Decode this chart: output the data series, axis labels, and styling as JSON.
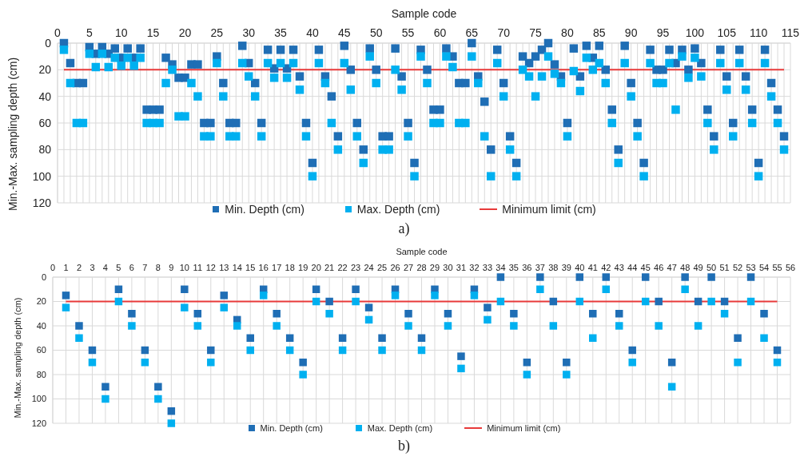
{
  "chart_data": [
    {
      "type": "scatter",
      "xlabel": "Sample code",
      "ylabel": "Min.-Max. sampling depth (cm)",
      "annotations": [
        "a)"
      ],
      "x": [
        1,
        2,
        3,
        4,
        5,
        6,
        7,
        8,
        9,
        10,
        11,
        12,
        13,
        14,
        15,
        16,
        17,
        18,
        19,
        20,
        21,
        22,
        23,
        24,
        25,
        26,
        27,
        28,
        29,
        30,
        31,
        32,
        33,
        34,
        35,
        36,
        37,
        38,
        39,
        40,
        41,
        42,
        43,
        44,
        45,
        46,
        47,
        48,
        49,
        50,
        51,
        52,
        53,
        54,
        55,
        56,
        57,
        58,
        59,
        60,
        61,
        62,
        63,
        64,
        65,
        66,
        67,
        68,
        69,
        70,
        71,
        72,
        73,
        74,
        75,
        76,
        77,
        78,
        79,
        80,
        81,
        82,
        83,
        84,
        85,
        86,
        87,
        88,
        89,
        90,
        91,
        92,
        93,
        94,
        95,
        96,
        97,
        98,
        99,
        100,
        101,
        102,
        103,
        104,
        105,
        106,
        107,
        108,
        109,
        110,
        111,
        112,
        113,
        114
      ],
      "series": [
        {
          "name": "Min. Depth  (cm)",
          "color": "#1f6eb5",
          "marker": "square",
          "values": [
            0,
            15,
            30,
            30,
            3,
            8,
            3,
            8,
            4,
            11,
            4,
            11,
            4,
            50,
            50,
            50,
            11,
            16,
            26,
            26,
            16,
            16,
            60,
            60,
            10,
            30,
            60,
            60,
            2,
            15,
            30,
            60,
            5,
            19,
            5,
            19,
            5,
            25,
            60,
            90,
            5,
            25,
            40,
            70,
            2,
            20,
            60,
            80,
            4,
            20,
            70,
            70,
            4,
            25,
            60,
            90,
            5,
            20,
            50,
            50,
            4,
            10,
            30,
            30,
            0,
            25,
            44,
            80,
            5,
            30,
            70,
            90,
            10,
            15,
            10,
            5,
            0,
            16,
            25,
            60,
            4,
            25,
            2,
            11,
            2,
            20,
            50,
            80,
            2,
            30,
            60,
            90,
            5,
            20,
            20,
            5,
            15,
            5,
            20,
            4,
            15,
            50,
            70,
            5,
            25,
            60,
            5,
            25,
            50,
            90,
            5,
            30,
            50,
            70
          ]
        },
        {
          "name": "Max. Depth (cm)",
          "color": "#00b0f0",
          "marker": "square",
          "values": [
            5,
            30,
            60,
            60,
            8,
            18,
            8,
            18,
            11,
            17,
            11,
            17,
            11,
            60,
            60,
            60,
            30,
            20,
            55,
            55,
            30,
            40,
            70,
            70,
            15,
            40,
            70,
            70,
            15,
            25,
            40,
            70,
            15,
            26,
            15,
            26,
            15,
            35,
            70,
            100,
            15,
            30,
            60,
            80,
            15,
            35,
            70,
            90,
            10,
            30,
            80,
            80,
            20,
            35,
            70,
            100,
            10,
            30,
            60,
            60,
            10,
            18,
            60,
            60,
            10,
            30,
            70,
            100,
            15,
            40,
            80,
            100,
            20,
            25,
            40,
            25,
            10,
            23,
            30,
            70,
            21,
            36,
            11,
            20,
            15,
            30,
            60,
            90,
            15,
            40,
            70,
            100,
            15,
            30,
            30,
            15,
            50,
            10,
            26,
            11,
            25,
            60,
            80,
            15,
            35,
            70,
            15,
            35,
            60,
            100,
            15,
            40,
            60,
            80
          ]
        },
        {
          "name": "Minimum limit (cm)",
          "type": "line",
          "color": "#e83a3a",
          "x": [
            1,
            114
          ],
          "values": [
            20,
            20
          ]
        }
      ],
      "xlim": [
        0,
        115
      ],
      "legend": "bottom",
      "xticks": [
        0,
        {
          "value": 1,
          "label": null
        },
        {
          "value": 2,
          "label": null
        },
        {
          "value": 3,
          "label": null
        },
        {
          "value": 4,
          "label": null
        },
        5,
        {
          "value": 6,
          "label": null
        },
        {
          "value": 7,
          "label": null
        },
        {
          "value": 8,
          "label": null
        },
        {
          "value": 9,
          "label": null
        },
        10,
        {
          "value": 11,
          "label": null
        },
        {
          "value": 12,
          "label": null
        },
        {
          "value": 13,
          "label": null
        },
        {
          "value": 14,
          "label": null
        },
        15,
        {
          "value": 16,
          "label": null
        },
        {
          "value": 17,
          "label": null
        },
        {
          "value": 18,
          "label": null
        },
        {
          "value": 19,
          "label": null
        },
        20,
        {
          "value": 21,
          "label": null
        },
        {
          "value": 22,
          "label": null
        },
        {
          "value": 23,
          "label": null
        },
        {
          "value": 24,
          "label": null
        },
        25,
        {
          "value": 26,
          "label": null
        },
        {
          "value": 27,
          "label": null
        },
        {
          "value": 28,
          "label": null
        },
        {
          "value": 29,
          "label": null
        },
        30,
        {
          "value": 31,
          "label": null
        },
        {
          "value": 32,
          "label": null
        },
        {
          "value": 33,
          "label": null
        },
        {
          "value": 34,
          "label": null
        },
        35,
        {
          "value": 36,
          "label": null
        },
        {
          "value": 37,
          "label": null
        },
        {
          "value": 38,
          "label": null
        },
        {
          "value": 39,
          "label": null
        },
        40,
        {
          "value": 41,
          "label": null
        },
        {
          "value": 42,
          "label": null
        },
        {
          "value": 43,
          "label": null
        },
        {
          "value": 44,
          "label": null
        },
        45,
        {
          "value": 46,
          "label": null
        },
        {
          "value": 47,
          "label": null
        },
        {
          "value": 48,
          "label": null
        },
        {
          "value": 49,
          "label": null
        },
        50,
        {
          "value": 51,
          "label": null
        },
        {
          "value": 52,
          "label": null
        },
        {
          "value": 53,
          "label": null
        },
        {
          "value": 54,
          "label": null
        },
        55,
        {
          "value": 56,
          "label": null
        },
        {
          "value": 57,
          "label": null
        },
        {
          "value": 58,
          "label": null
        },
        {
          "value": 59,
          "label": null
        },
        60,
        {
          "value": 61,
          "label": null
        },
        {
          "value": 62,
          "label": null
        },
        {
          "value": 63,
          "label": null
        },
        {
          "value": 64,
          "label": null
        },
        65,
        {
          "value": 66,
          "label": null
        },
        {
          "value": 67,
          "label": null
        },
        {
          "value": 68,
          "label": null
        },
        {
          "value": 69,
          "label": null
        },
        70,
        {
          "value": 71,
          "label": null
        },
        {
          "value": 72,
          "label": null
        },
        {
          "value": 73,
          "label": null
        },
        {
          "value": 74,
          "label": null
        },
        75,
        {
          "value": 76,
          "label": null
        },
        {
          "value": 77,
          "label": null
        },
        {
          "value": 78,
          "label": null
        },
        {
          "value": 79,
          "label": null
        },
        80,
        {
          "value": 81,
          "label": null
        },
        {
          "value": 82,
          "label": null
        },
        {
          "value": 83,
          "label": null
        },
        {
          "value": 84,
          "label": null
        },
        85,
        {
          "value": 86,
          "label": null
        },
        {
          "value": 87,
          "label": null
        },
        {
          "value": 88,
          "label": null
        },
        {
          "value": 89,
          "label": null
        },
        90,
        {
          "value": 91,
          "label": null
        },
        {
          "value": 92,
          "label": null
        },
        {
          "value": 93,
          "label": null
        },
        {
          "value": 94,
          "label": null
        },
        95,
        {
          "value": 96,
          "label": null
        },
        {
          "value": 97,
          "label": null
        },
        {
          "value": 98,
          "label": null
        },
        {
          "value": 99,
          "label": null
        },
        100,
        {
          "value": 101,
          "label": null
        },
        {
          "value": 102,
          "label": null
        },
        {
          "value": 103,
          "label": null
        },
        {
          "value": 104,
          "label": null
        },
        105,
        {
          "value": 106,
          "label": null
        },
        {
          "value": 107,
          "label": null
        },
        {
          "value": 108,
          "label": null
        },
        {
          "value": 109,
          "label": null
        },
        110,
        {
          "value": 111,
          "label": null
        },
        {
          "value": 112,
          "label": null
        },
        {
          "value": 113,
          "label": null
        },
        {
          "value": 114,
          "label": null
        },
        115
      ],
      "ylim": [
        120,
        0
      ],
      "yticks": [
        0,
        20,
        40,
        60,
        80,
        100,
        120
      ],
      "grid": true
    },
    {
      "type": "scatter",
      "xlabel": "Sample code",
      "ylabel": "Min.-Max. sampling depth (cm)",
      "annotations": [
        "b)"
      ],
      "x": [
        1,
        2,
        3,
        4,
        5,
        6,
        7,
        8,
        9,
        10,
        11,
        12,
        13,
        14,
        15,
        16,
        17,
        18,
        19,
        20,
        21,
        22,
        23,
        24,
        25,
        26,
        27,
        28,
        29,
        30,
        31,
        32,
        33,
        34,
        35,
        36,
        37,
        38,
        39,
        40,
        41,
        42,
        43,
        44,
        45,
        46,
        47,
        48,
        49,
        50,
        51,
        52,
        53,
        54,
        55
      ],
      "series": [
        {
          "name": "Min. Depth  (cm)",
          "color": "#1f6eb5",
          "marker": "square",
          "values": [
            15,
            40,
            60,
            90,
            10,
            30,
            60,
            90,
            110,
            10,
            30,
            60,
            15,
            35,
            50,
            10,
            30,
            50,
            70,
            10,
            20,
            50,
            10,
            25,
            50,
            10,
            30,
            50,
            10,
            30,
            65,
            10,
            25,
            0,
            30,
            70,
            0,
            20,
            70,
            0,
            30,
            0,
            30,
            60,
            0,
            20,
            70,
            0,
            20,
            0,
            20,
            50,
            0,
            30,
            60
          ]
        },
        {
          "name": "Max. Depth (cm)",
          "color": "#00b0f0",
          "marker": "square",
          "values": [
            25,
            50,
            70,
            100,
            20,
            40,
            70,
            100,
            120,
            25,
            40,
            70,
            25,
            40,
            60,
            15,
            40,
            60,
            80,
            20,
            30,
            60,
            20,
            35,
            60,
            15,
            40,
            60,
            15,
            40,
            75,
            15,
            35,
            20,
            40,
            80,
            10,
            40,
            80,
            20,
            50,
            10,
            40,
            70,
            20,
            40,
            90,
            10,
            40,
            20,
            30,
            70,
            20,
            50,
            70
          ]
        },
        {
          "name": "Minimum limit (cm)",
          "type": "line",
          "color": "#e83a3a",
          "x": [
            1,
            55
          ],
          "values": [
            20,
            20
          ]
        }
      ],
      "xlim": [
        0,
        56
      ],
      "xticks": [
        0,
        1,
        2,
        3,
        4,
        5,
        6,
        7,
        8,
        9,
        10,
        11,
        12,
        13,
        14,
        15,
        16,
        17,
        18,
        19,
        20,
        21,
        22,
        23,
        24,
        25,
        26,
        27,
        28,
        29,
        30,
        31,
        32,
        33,
        34,
        35,
        36,
        37,
        38,
        39,
        40,
        41,
        42,
        43,
        44,
        45,
        46,
        47,
        48,
        49,
        50,
        51,
        52,
        53,
        54,
        55,
        56
      ],
      "ylim": [
        120,
        0
      ],
      "yticks": [
        0,
        20,
        40,
        60,
        80,
        100,
        120
      ],
      "grid": true,
      "legend": "bottom"
    }
  ]
}
